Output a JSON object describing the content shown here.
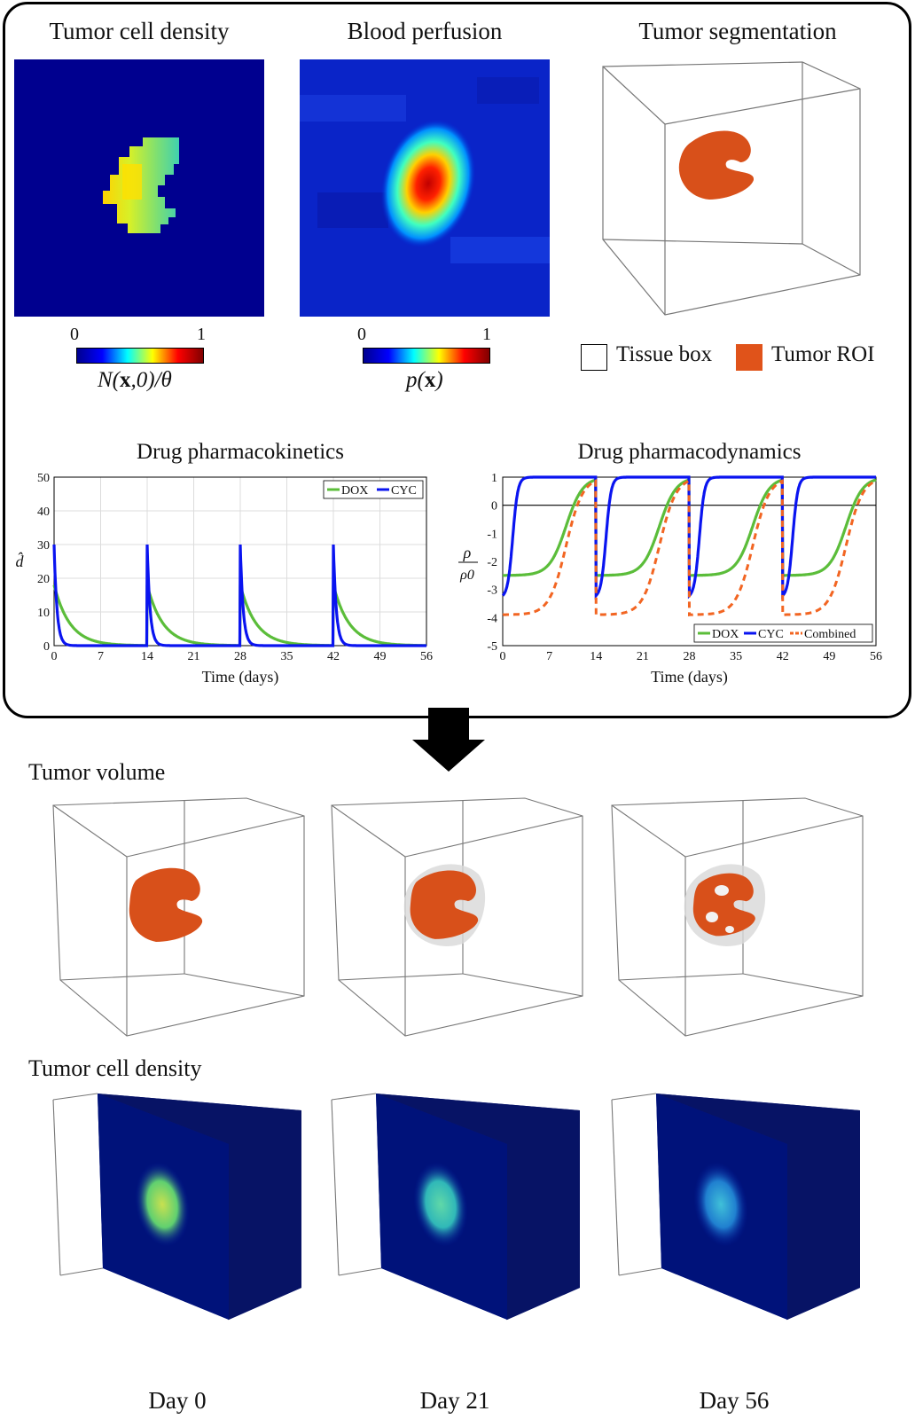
{
  "top": {
    "panel1_title": "Tumor cell density",
    "panel2_title": "Blood perfusion",
    "panel3_title": "Tumor segmentation",
    "cb1": {
      "min": "0",
      "max": "1",
      "label_pre": "N(",
      "label_bold": "x",
      "label_post": ",0)/θ"
    },
    "cb2": {
      "min": "0",
      "max": "1",
      "label_pre": "p(",
      "label_bold": "x",
      "label_post": ")"
    },
    "legend": {
      "tissue_box": "Tissue box",
      "tumor_roi": "Tumor ROI",
      "tumor_color": "#e0531a"
    }
  },
  "chart_data": [
    {
      "type": "line",
      "title": "Drug pharmacokinetics",
      "xlabel": "Time (days)",
      "ylabel": "d̂",
      "xlim": [
        0,
        56
      ],
      "ylim": [
        0,
        50
      ],
      "xticks": [
        0,
        7,
        14,
        21,
        28,
        35,
        42,
        49,
        56
      ],
      "yticks": [
        0,
        10,
        20,
        30,
        40,
        50
      ],
      "grid": true,
      "legend_position": "top-right",
      "doses": [
        0,
        14,
        28,
        42
      ],
      "series": [
        {
          "name": "DOX",
          "color": "#5bbd3a",
          "peak": 18,
          "decay_per_day": 0.42
        },
        {
          "name": "CYC",
          "color": "#0a14f0",
          "peak": 30,
          "decay_per_day": 2.3
        }
      ]
    },
    {
      "type": "line",
      "title": "Drug pharmacodynamics",
      "xlabel": "Time (days)",
      "ylabel": "ρ/ρ0",
      "xlim": [
        0,
        56
      ],
      "ylim": [
        -5,
        1
      ],
      "xticks": [
        0,
        7,
        14,
        21,
        28,
        35,
        42,
        49,
        56
      ],
      "yticks": [
        -5,
        -4,
        -3,
        -2,
        -1,
        0,
        1
      ],
      "grid": false,
      "legend_position": "bottom-right",
      "doses": [
        0,
        14,
        28,
        42
      ],
      "series": [
        {
          "name": "DOX",
          "color": "#5bbd3a",
          "min": -2.5,
          "recover_mid": 9.5
        },
        {
          "name": "CYC",
          "color": "#0a14f0",
          "min": -3.3,
          "recover_mid": 1.5
        },
        {
          "name": "Combined",
          "color": "#f26522",
          "min": -3.9,
          "recover_mid": 9.5
        }
      ]
    }
  ],
  "bottom": {
    "row1_title": "Tumor volume",
    "row2_title": "Tumor cell density",
    "days": [
      "Day 0",
      "Day 21",
      "Day 56"
    ]
  }
}
